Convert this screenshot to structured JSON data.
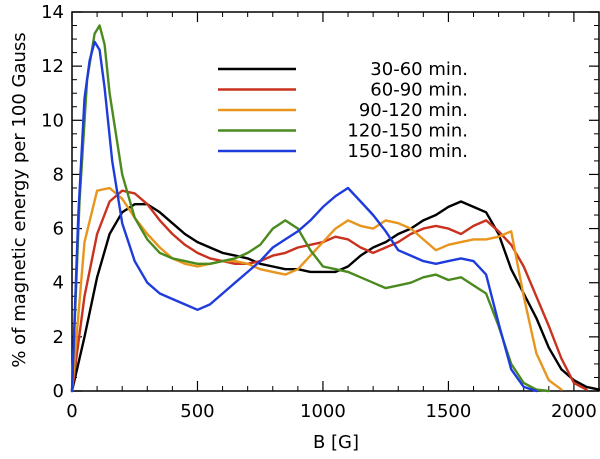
{
  "chart_data": {
    "type": "line",
    "title": "",
    "xlabel": "B [G]",
    "ylabel": "% of magnetic energy per 100 Gauss",
    "xlim": [
      0,
      2100
    ],
    "ylim": [
      0,
      14
    ],
    "xticks": [
      0,
      500,
      1000,
      1500,
      2000
    ],
    "yticks": [
      0,
      2,
      4,
      6,
      8,
      10,
      12,
      14
    ],
    "grid": false,
    "legend_position": "top-right",
    "series": [
      {
        "name": "30-60 min.",
        "color": "#000000",
        "x": [
          0,
          50,
          100,
          150,
          200,
          250,
          300,
          350,
          400,
          450,
          500,
          550,
          600,
          650,
          700,
          750,
          800,
          850,
          900,
          950,
          1000,
          1050,
          1100,
          1150,
          1200,
          1250,
          1300,
          1350,
          1400,
          1450,
          1500,
          1550,
          1600,
          1650,
          1700,
          1750,
          1800,
          1850,
          1900,
          1950,
          2000,
          2050,
          2100
        ],
        "y": [
          0,
          2.0,
          4.2,
          5.8,
          6.6,
          6.9,
          6.9,
          6.6,
          6.2,
          5.8,
          5.5,
          5.3,
          5.1,
          5.0,
          4.9,
          4.7,
          4.6,
          4.5,
          4.5,
          4.4,
          4.4,
          4.4,
          4.6,
          5.0,
          5.3,
          5.5,
          5.8,
          6.0,
          6.3,
          6.5,
          6.8,
          7.0,
          6.8,
          6.6,
          5.8,
          4.5,
          3.6,
          2.7,
          1.6,
          0.8,
          0.4,
          0.15,
          0.05
        ]
      },
      {
        "name": "60-90 min.",
        "color": "#c8321e",
        "x": [
          0,
          50,
          100,
          150,
          200,
          250,
          300,
          350,
          400,
          450,
          500,
          550,
          600,
          650,
          700,
          750,
          800,
          850,
          900,
          950,
          1000,
          1050,
          1100,
          1150,
          1200,
          1250,
          1300,
          1350,
          1400,
          1450,
          1500,
          1550,
          1600,
          1650,
          1700,
          1750,
          1800,
          1850,
          1900,
          1950,
          2000,
          2050
        ],
        "y": [
          0,
          3.5,
          5.8,
          7.0,
          7.4,
          7.3,
          6.9,
          6.3,
          5.8,
          5.4,
          5.1,
          4.9,
          4.8,
          4.7,
          4.7,
          4.8,
          5.0,
          5.1,
          5.3,
          5.4,
          5.5,
          5.7,
          5.6,
          5.3,
          5.1,
          5.3,
          5.5,
          5.8,
          6.0,
          6.1,
          6.0,
          5.8,
          6.1,
          6.3,
          5.9,
          5.4,
          4.6,
          3.5,
          2.4,
          1.2,
          0.3,
          0.05
        ]
      },
      {
        "name": "90-120 min.",
        "color": "#e8951e",
        "x": [
          0,
          50,
          100,
          150,
          200,
          250,
          300,
          350,
          400,
          450,
          500,
          550,
          600,
          650,
          700,
          750,
          800,
          850,
          900,
          950,
          1000,
          1050,
          1100,
          1150,
          1200,
          1250,
          1300,
          1350,
          1400,
          1450,
          1500,
          1550,
          1600,
          1650,
          1700,
          1750,
          1800,
          1850,
          1900,
          1950
        ],
        "y": [
          0,
          5.5,
          7.4,
          7.5,
          7.1,
          6.4,
          5.8,
          5.3,
          4.9,
          4.7,
          4.6,
          4.7,
          4.8,
          4.8,
          4.7,
          4.5,
          4.4,
          4.3,
          4.5,
          5.0,
          5.5,
          6.0,
          6.3,
          6.1,
          6.0,
          6.3,
          6.2,
          6.0,
          5.6,
          5.2,
          5.4,
          5.5,
          5.6,
          5.6,
          5.7,
          5.9,
          3.5,
          1.4,
          0.4,
          0.05
        ]
      },
      {
        "name": "120-150 min.",
        "color": "#4a8a1e",
        "x": [
          0,
          30,
          60,
          90,
          110,
          130,
          150,
          200,
          250,
          300,
          350,
          400,
          450,
          500,
          550,
          600,
          650,
          700,
          750,
          800,
          850,
          900,
          950,
          1000,
          1050,
          1100,
          1150,
          1200,
          1250,
          1300,
          1350,
          1400,
          1450,
          1500,
          1550,
          1600,
          1650,
          1700,
          1750,
          1800,
          1850,
          1900
        ],
        "y": [
          0,
          7.0,
          11.5,
          13.2,
          13.5,
          12.8,
          11.0,
          8.0,
          6.4,
          5.6,
          5.1,
          4.9,
          4.8,
          4.7,
          4.7,
          4.8,
          4.9,
          5.1,
          5.4,
          6.0,
          6.3,
          6.0,
          5.2,
          4.6,
          4.5,
          4.4,
          4.2,
          4.0,
          3.8,
          3.9,
          4.0,
          4.2,
          4.3,
          4.1,
          4.2,
          3.9,
          3.6,
          2.4,
          1.0,
          0.3,
          0.05,
          0
        ]
      },
      {
        "name": "150-180 min.",
        "color": "#1e3cdc",
        "x": [
          0,
          25,
          50,
          70,
          90,
          110,
          130,
          160,
          200,
          250,
          300,
          350,
          400,
          450,
          500,
          550,
          600,
          650,
          700,
          750,
          800,
          850,
          900,
          950,
          1000,
          1050,
          1100,
          1150,
          1200,
          1250,
          1300,
          1350,
          1400,
          1450,
          1500,
          1550,
          1600,
          1650,
          1700,
          1750,
          1800,
          1850
        ],
        "y": [
          0,
          6.5,
          10.8,
          12.2,
          12.9,
          12.6,
          11.2,
          8.5,
          6.2,
          4.8,
          4.0,
          3.6,
          3.4,
          3.2,
          3.0,
          3.2,
          3.6,
          4.0,
          4.4,
          4.8,
          5.3,
          5.6,
          5.9,
          6.3,
          6.8,
          7.2,
          7.5,
          7.0,
          6.5,
          5.9,
          5.2,
          5.0,
          4.8,
          4.7,
          4.8,
          4.9,
          4.8,
          4.3,
          2.5,
          0.8,
          0.15,
          0
        ]
      }
    ]
  }
}
